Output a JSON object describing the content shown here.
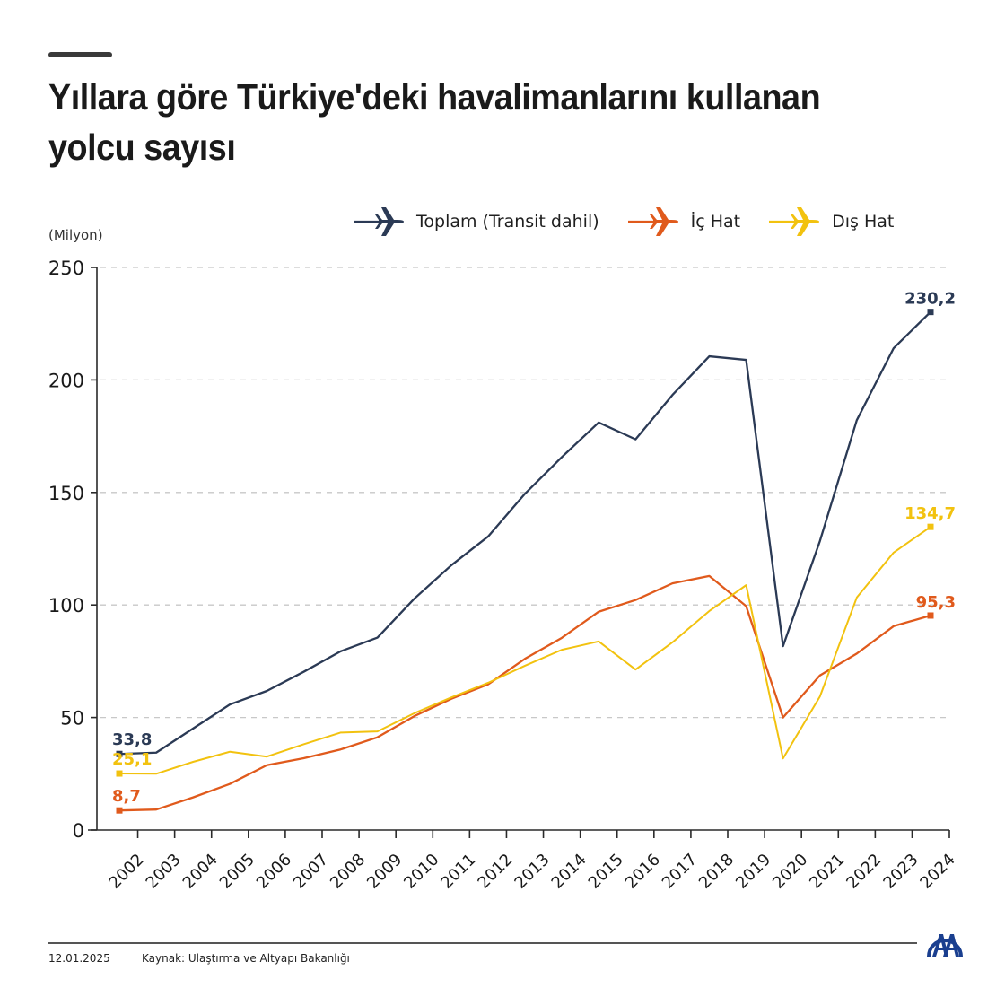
{
  "header": {
    "title": "Yıllara göre Türkiye'deki havalimanlarını kullanan yolcu sayısı"
  },
  "legend": {
    "items": [
      {
        "label": "Toplam (Transit dahil)",
        "color": "#2b3a55",
        "icon": "airplane-icon"
      },
      {
        "label": "İç Hat",
        "color": "#e05a1c",
        "icon": "airplane-icon"
      },
      {
        "label": "Dış Hat",
        "color": "#f2c20f",
        "icon": "airplane-icon"
      }
    ]
  },
  "axis": {
    "unit_label": "(Milyon)"
  },
  "footer": {
    "date": "12.01.2025",
    "source": "Kaynak: Ulaştırma ve Altyapı Bakanlığı",
    "logo": "aa-logo-icon"
  },
  "colors": {
    "total": "#2b3a55",
    "domestic": "#e05a1c",
    "international": "#f2c20f",
    "logo": "#1a3f8f",
    "grid": "#c8c8c8"
  },
  "chart_data": {
    "type": "line",
    "title": "Yıllara göre Türkiye'deki havalimanlarını kullanan yolcu sayısı",
    "xlabel": "",
    "ylabel": "(Milyon)",
    "ylim": [
      0,
      250
    ],
    "yticks": [
      0,
      50,
      100,
      150,
      200,
      250
    ],
    "grid": true,
    "legend_position": "top-right",
    "x": [
      "2002",
      "2003",
      "2004",
      "2005",
      "2006",
      "2007",
      "2008",
      "2009",
      "2010",
      "2011",
      "2012",
      "2013",
      "2014",
      "2015",
      "2016",
      "2017",
      "2018",
      "2019",
      "2020",
      "2021",
      "2022",
      "2023",
      "2024"
    ],
    "series": [
      {
        "name": "Toplam (Transit dahil)",
        "color": "#2b3a55",
        "values": [
          33.8,
          34.4,
          45.1,
          55.8,
          61.8,
          70.3,
          79.4,
          85.5,
          102.8,
          117.6,
          130.4,
          149.4,
          165.7,
          181.1,
          173.6,
          193.3,
          210.5,
          208.9,
          81.7,
          128.4,
          182.1,
          214.1,
          230.2
        ],
        "start_label": "33,8",
        "end_label": "230,2"
      },
      {
        "name": "İç Hat",
        "color": "#e05a1c",
        "values": [
          8.7,
          9.1,
          14.5,
          20.5,
          28.8,
          31.9,
          35.8,
          41.2,
          50.6,
          58.3,
          64.7,
          76.1,
          85.4,
          97.0,
          102.2,
          109.6,
          112.9,
          99.5,
          50.0,
          68.7,
          78.4,
          90.6,
          95.3
        ],
        "start_label": "8,7",
        "end_label": "95,3"
      },
      {
        "name": "Dış Hat",
        "color": "#f2c20f",
        "values": [
          25.1,
          25.0,
          30.3,
          34.8,
          32.6,
          38.1,
          43.3,
          43.8,
          51.9,
          58.9,
          65.4,
          73.0,
          80.1,
          83.8,
          71.3,
          83.4,
          97.3,
          108.8,
          31.8,
          59.3,
          103.3,
          123.3,
          134.7
        ],
        "start_label": "25,1",
        "end_label": "134,7"
      }
    ]
  }
}
